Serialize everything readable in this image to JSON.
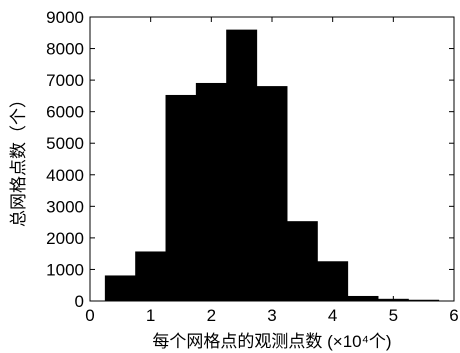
{
  "chart_data": {
    "type": "bar",
    "title": "",
    "xlabel": "每个网格点的观测点数 (×10⁴个)",
    "ylabel": "总网格点数（个）",
    "xlim": [
      0,
      6
    ],
    "ylim": [
      0,
      9000
    ],
    "x_ticks": [
      0,
      1,
      2,
      3,
      4,
      5,
      6
    ],
    "y_ticks": [
      0,
      1000,
      2000,
      3000,
      4000,
      5000,
      6000,
      7000,
      8000,
      9000
    ],
    "grid": false,
    "legend": "none",
    "bar_color": "#000000",
    "bin_edges": [
      0.25,
      0.75,
      1.25,
      1.75,
      2.25,
      2.75,
      3.25,
      3.75,
      4.25,
      4.75,
      5.25,
      5.75
    ],
    "values": [
      800,
      1560,
      6520,
      6900,
      8590,
      6800,
      2520,
      1250,
      150,
      60,
      30
    ]
  }
}
